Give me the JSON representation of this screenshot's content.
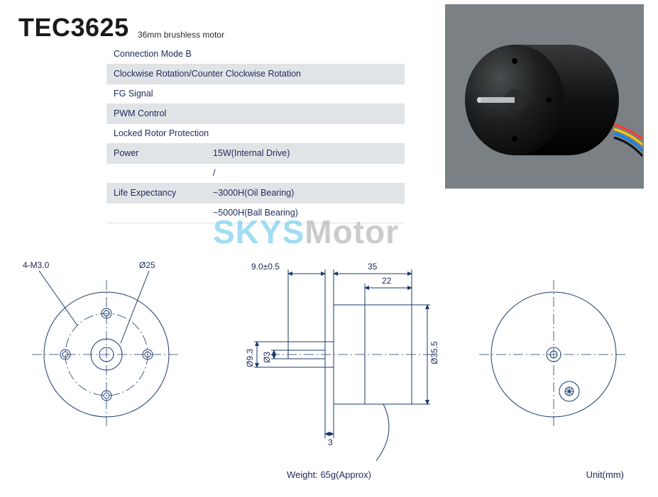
{
  "header": {
    "model": "TEC3625",
    "subtitle": "36mm brushless motor"
  },
  "spec_rows": [
    {
      "shaded": false,
      "label": "Connection Mode B",
      "value": ""
    },
    {
      "shaded": true,
      "label": "Clockwise Rotation/Counter Clockwise Rotation",
      "value": ""
    },
    {
      "shaded": false,
      "label": "FG Signal",
      "value": ""
    },
    {
      "shaded": true,
      "label": "PWM Control",
      "value": ""
    },
    {
      "shaded": false,
      "label": "Locked Rotor Protection",
      "value": ""
    },
    {
      "shaded": true,
      "label": "Power",
      "value": "15W(Internal Drive)"
    },
    {
      "shaded": false,
      "label": "",
      "value": "/"
    },
    {
      "shaded": true,
      "label": "Life Expectancy",
      "value": "~3000H(Oil Bearing)"
    },
    {
      "shaded": false,
      "label": "",
      "value": "~5000H(Ball Bearing)"
    }
  ],
  "watermark": {
    "a": "SKYS",
    "b": "Motor"
  },
  "photo": {
    "bg": "#7a8084",
    "body_fill_dark": "#1c1e1f",
    "body_fill_light": "#3a3d3f",
    "shaft_fill": "#b8bcc0",
    "wire_colors": [
      "#ff3b30",
      "#ffcc00",
      "#34c759",
      "#0a84ff",
      "#111"
    ]
  },
  "drawing": {
    "stroke": "#193a6b",
    "left_view": {
      "outer_dia_label": "Ø25",
      "holes_label": "4-M3.0",
      "outer_r": 88,
      "inner_r": 22,
      "bolt_circle_r": 58,
      "hole_r": 7
    },
    "side_view": {
      "body_len_label": "35",
      "body_inner_label": "22",
      "shaft_len_label": "9.0±0.5",
      "shaft_stub_label": "3",
      "shaft_dia_label": "Ø3",
      "hub_dia_label": "Ø9.3",
      "body_dia_label": "Ø35.5"
    },
    "right_view": {
      "outer_r": 88
    },
    "weight": "Weight: 65g(Approx)",
    "unit": "Unit(mm)"
  }
}
